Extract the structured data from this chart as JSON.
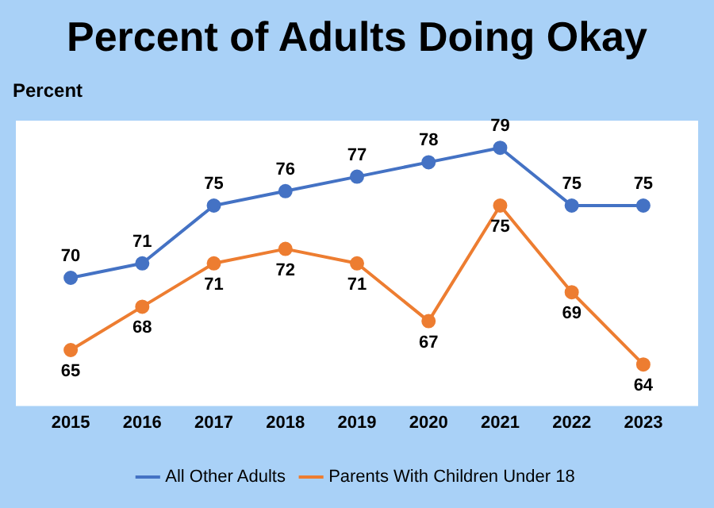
{
  "chart_data": {
    "type": "line",
    "title": "Percent of Adults Doing Okay",
    "ylabel": "Percent",
    "categories": [
      "2015",
      "2016",
      "2017",
      "2018",
      "2019",
      "2020",
      "2021",
      "2022",
      "2023"
    ],
    "series": [
      {
        "name": "All Other Adults",
        "color": "#4472c4",
        "values": [
          70,
          71,
          75,
          76,
          77,
          78,
          79,
          75,
          75
        ]
      },
      {
        "name": "Parents With Children Under 18",
        "color": "#ed7d31",
        "values": [
          65,
          68,
          71,
          72,
          71,
          67,
          75,
          69,
          64
        ]
      }
    ],
    "data_labels": true,
    "grid": false,
    "legend": "bottom",
    "marker": "circle",
    "line_style": "solid",
    "tick_labels": "x"
  }
}
